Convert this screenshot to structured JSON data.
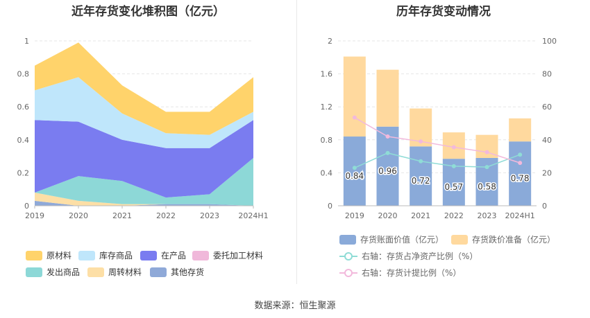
{
  "source_text": "数据来源：恒生聚源",
  "chart_data": [
    {
      "type": "area",
      "stacked": true,
      "title": "近年存货变化堆积图（亿元）",
      "categories": [
        "2019",
        "2020",
        "2021",
        "2022",
        "2023",
        "2024H1"
      ],
      "ylim": [
        0,
        1
      ],
      "yticks": [
        "0",
        "0.2",
        "0.4",
        "0.6",
        "0.8",
        "1"
      ],
      "grid": true,
      "legend_position": "bottom",
      "series": [
        {
          "name": "其他存货",
          "color": "#8fa9d8",
          "values": [
            0.03,
            0.0,
            0.0,
            0.01,
            0.01,
            0.0
          ]
        },
        {
          "name": "周转材料",
          "color": "#fddfa6",
          "values": [
            0.05,
            0.03,
            0.01,
            0.0,
            0.0,
            0.0
          ]
        },
        {
          "name": "发出商品",
          "color": "#8dd8d7",
          "values": [
            0.0,
            0.15,
            0.14,
            0.04,
            0.06,
            0.29
          ]
        },
        {
          "name": "委托加工材料",
          "color": "#f0b8da",
          "values": [
            0.0,
            0.0,
            0.0,
            0.0,
            0.0,
            0.0
          ]
        },
        {
          "name": "在产品",
          "color": "#7a7cf0",
          "values": [
            0.44,
            0.33,
            0.25,
            0.3,
            0.28,
            0.23
          ]
        },
        {
          "name": "库存商品",
          "color": "#bfe6fb",
          "values": [
            0.18,
            0.27,
            0.16,
            0.09,
            0.08,
            0.05
          ]
        },
        {
          "name": "原材料",
          "color": "#ffd36b",
          "values": [
            0.15,
            0.21,
            0.17,
            0.13,
            0.14,
            0.21
          ]
        }
      ],
      "legend_order": [
        "原材料",
        "库存商品",
        "在产品",
        "委托加工材料",
        "发出商品",
        "周转材料",
        "其他存货"
      ]
    },
    {
      "type": "bar",
      "stacked": true,
      "title": "历年存货变动情况",
      "categories": [
        "2019",
        "2020",
        "2021",
        "2022",
        "2023",
        "2024H1"
      ],
      "ylim_left": [
        0,
        2
      ],
      "yticks_left": [
        "0",
        "0.4",
        "0.8",
        "1.2",
        "1.6",
        "2"
      ],
      "ylim_right": [
        0,
        100
      ],
      "yticks_right": [
        "0",
        "20",
        "40",
        "60",
        "80",
        "100"
      ],
      "grid": true,
      "legend_position": "bottom",
      "bar_series": [
        {
          "name": "存货账面价值（亿元）",
          "color": "#8aaad9",
          "values": [
            0.84,
            0.96,
            0.72,
            0.57,
            0.58,
            0.78
          ],
          "labels": [
            "0.84",
            "0.96",
            "0.72",
            "0.57",
            "0.58",
            "0.78"
          ]
        },
        {
          "name": "存货跌价准备（亿元）",
          "color": "#ffd99e",
          "values": [
            0.97,
            0.69,
            0.46,
            0.32,
            0.28,
            0.28
          ]
        }
      ],
      "line_series": [
        {
          "name": "右轴：存货占净资产比例（%）",
          "color": "#8fdcd6",
          "values": [
            23,
            32,
            27,
            24,
            23.5,
            31
          ]
        },
        {
          "name": "右轴：存货计提比例（%）",
          "color": "#f2b9dc",
          "values": [
            53.5,
            42,
            39,
            35.5,
            32.5,
            26
          ]
        }
      ]
    }
  ]
}
